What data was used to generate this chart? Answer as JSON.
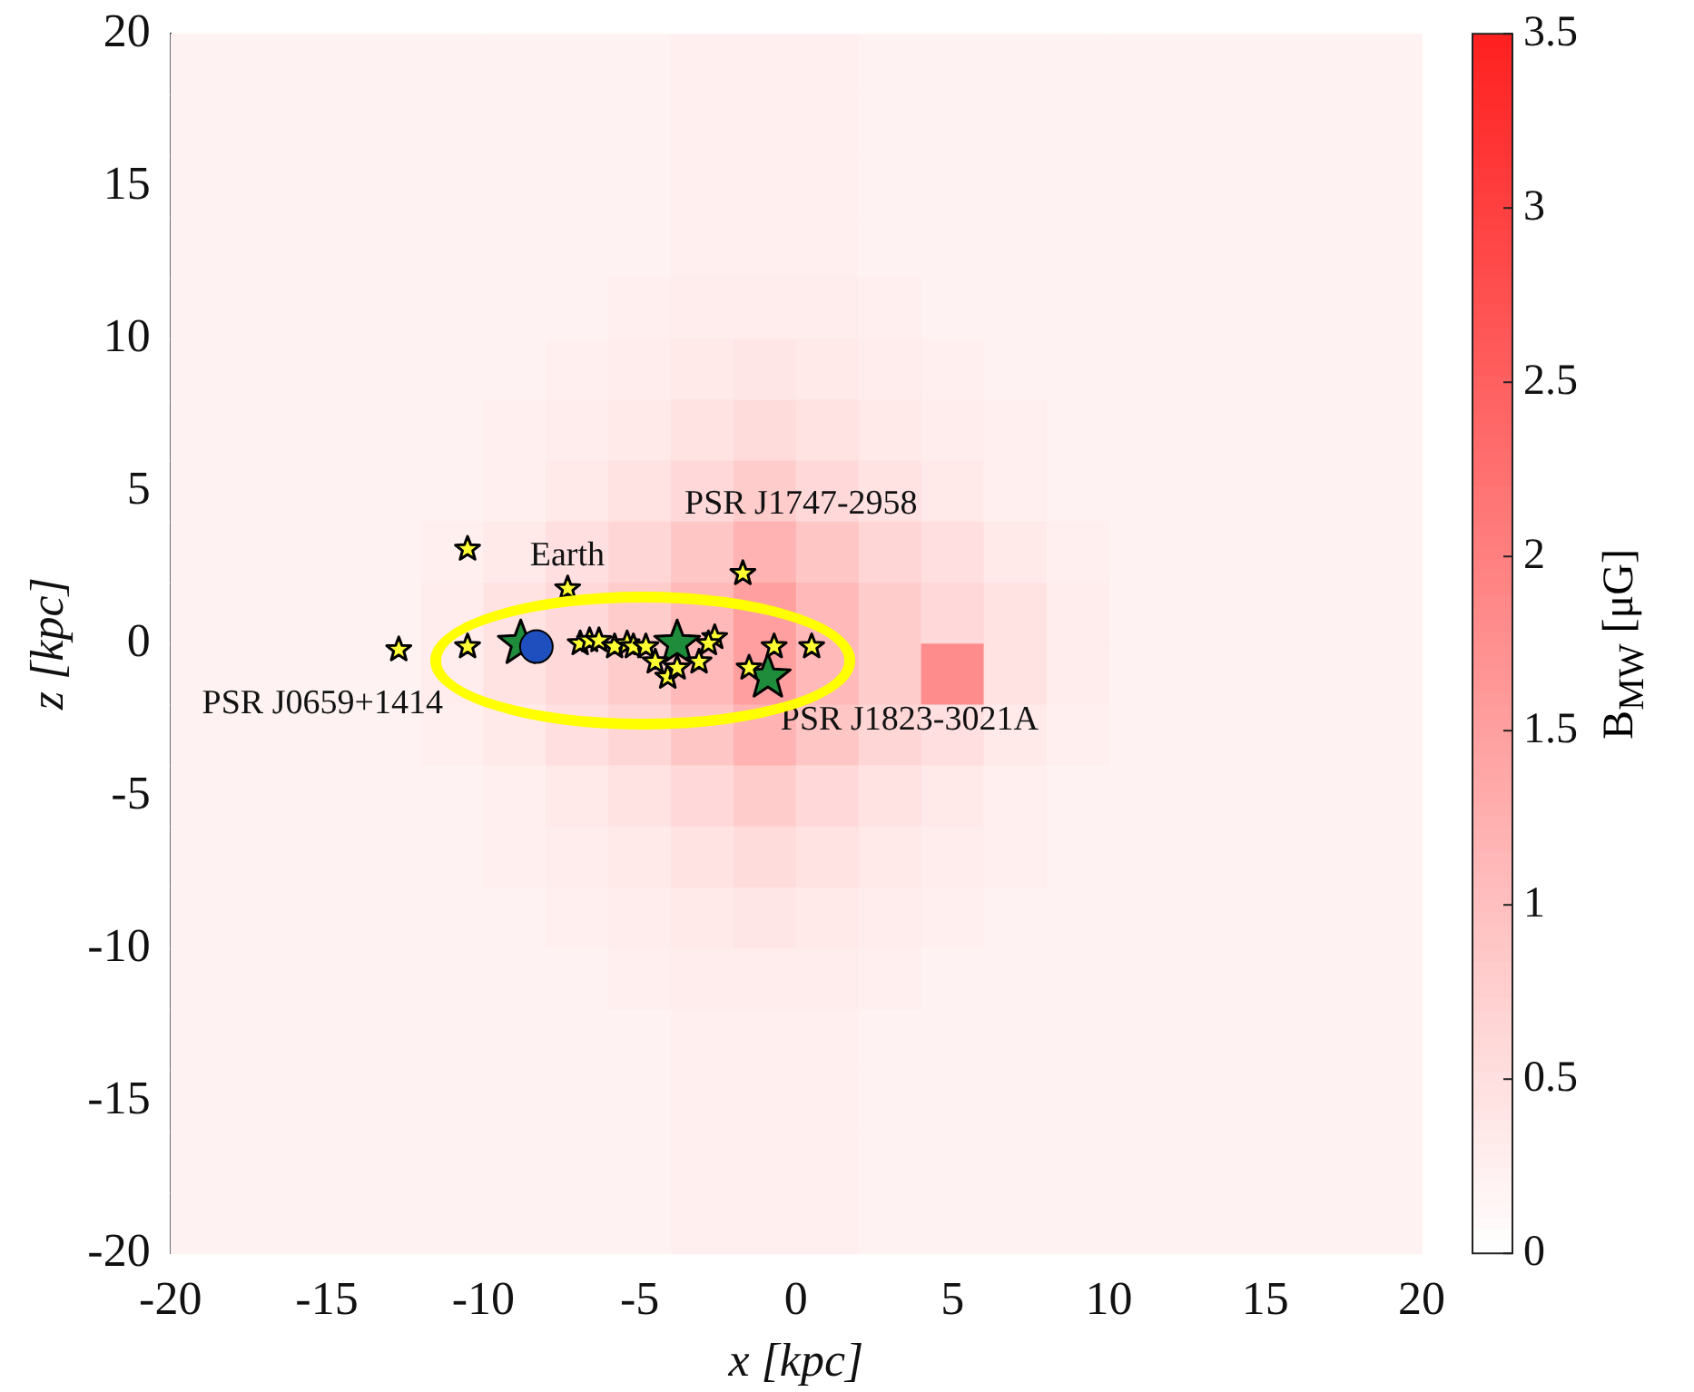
{
  "chart_data": {
    "type": "heatmap",
    "xlabel": "x [kpc]",
    "ylabel": "z [kpc]",
    "clabel": "B$_{MW}$ [μG]",
    "xlim": [
      -20,
      20
    ],
    "xticks": [
      -20,
      -15,
      -10,
      -5,
      0,
      5,
      10,
      15,
      20
    ],
    "ylim": [
      -20,
      20
    ],
    "yticks": [
      -20,
      -15,
      -10,
      -5,
      0,
      5,
      10,
      15,
      20
    ],
    "clim": [
      0,
      3.5
    ],
    "cticks": [
      0,
      0.5,
      1,
      1.5,
      2,
      2.5,
      3,
      3.5
    ],
    "grid": false,
    "legend": false,
    "cells": [
      [
        0.2,
        0.2,
        0.2,
        0.2,
        0.2,
        0.2,
        0.2,
        0.2,
        0.25,
        0.25,
        0.25,
        0.2,
        0.2,
        0.2,
        0.2,
        0.2,
        0.2,
        0.2,
        0.2,
        0.2
      ],
      [
        0.2,
        0.2,
        0.2,
        0.2,
        0.2,
        0.2,
        0.2,
        0.2,
        0.25,
        0.25,
        0.25,
        0.2,
        0.2,
        0.2,
        0.2,
        0.2,
        0.2,
        0.2,
        0.2,
        0.2
      ],
      [
        0.2,
        0.2,
        0.2,
        0.2,
        0.2,
        0.2,
        0.2,
        0.2,
        0.25,
        0.25,
        0.25,
        0.2,
        0.2,
        0.2,
        0.2,
        0.2,
        0.2,
        0.2,
        0.2,
        0.2
      ],
      [
        0.2,
        0.2,
        0.2,
        0.2,
        0.2,
        0.2,
        0.2,
        0.2,
        0.25,
        0.25,
        0.25,
        0.2,
        0.2,
        0.2,
        0.2,
        0.2,
        0.2,
        0.2,
        0.2,
        0.2
      ],
      [
        0.2,
        0.2,
        0.2,
        0.2,
        0.2,
        0.2,
        0.2,
        0.25,
        0.3,
        0.3,
        0.3,
        0.25,
        0.2,
        0.2,
        0.2,
        0.2,
        0.2,
        0.2,
        0.2,
        0.2
      ],
      [
        0.2,
        0.2,
        0.2,
        0.2,
        0.2,
        0.2,
        0.25,
        0.3,
        0.35,
        0.4,
        0.35,
        0.3,
        0.25,
        0.2,
        0.2,
        0.2,
        0.2,
        0.2,
        0.2,
        0.2
      ],
      [
        0.2,
        0.2,
        0.2,
        0.2,
        0.2,
        0.25,
        0.3,
        0.35,
        0.45,
        0.55,
        0.45,
        0.35,
        0.3,
        0.25,
        0.2,
        0.2,
        0.2,
        0.2,
        0.2,
        0.2
      ],
      [
        0.2,
        0.2,
        0.2,
        0.2,
        0.2,
        0.25,
        0.35,
        0.45,
        0.6,
        0.8,
        0.6,
        0.45,
        0.35,
        0.25,
        0.2,
        0.2,
        0.2,
        0.2,
        0.2,
        0.2
      ],
      [
        0.2,
        0.2,
        0.2,
        0.2,
        0.25,
        0.35,
        0.5,
        0.65,
        0.9,
        1.2,
        0.9,
        0.65,
        0.5,
        0.35,
        0.25,
        0.2,
        0.2,
        0.2,
        0.2,
        0.2
      ],
      [
        0.2,
        0.2,
        0.2,
        0.2,
        0.3,
        0.45,
        0.6,
        0.8,
        1.1,
        1.5,
        1.1,
        0.8,
        0.6,
        0.45,
        0.3,
        0.2,
        0.2,
        0.2,
        0.2,
        0.2
      ],
      [
        0.2,
        0.2,
        0.2,
        0.2,
        0.3,
        0.45,
        0.6,
        0.8,
        1.1,
        1.5,
        1.1,
        0.8,
        1.8,
        0.45,
        0.3,
        0.2,
        0.2,
        0.2,
        0.2,
        0.2
      ],
      [
        0.2,
        0.2,
        0.2,
        0.2,
        0.25,
        0.35,
        0.5,
        0.65,
        0.9,
        1.2,
        0.9,
        0.65,
        0.5,
        0.35,
        0.25,
        0.2,
        0.2,
        0.2,
        0.2,
        0.2
      ],
      [
        0.2,
        0.2,
        0.2,
        0.2,
        0.2,
        0.25,
        0.35,
        0.45,
        0.6,
        0.8,
        0.6,
        0.45,
        0.35,
        0.25,
        0.2,
        0.2,
        0.2,
        0.2,
        0.2,
        0.2
      ],
      [
        0.2,
        0.2,
        0.2,
        0.2,
        0.2,
        0.25,
        0.3,
        0.35,
        0.45,
        0.55,
        0.45,
        0.35,
        0.3,
        0.25,
        0.2,
        0.2,
        0.2,
        0.2,
        0.2,
        0.2
      ],
      [
        0.2,
        0.2,
        0.2,
        0.2,
        0.2,
        0.2,
        0.25,
        0.3,
        0.35,
        0.4,
        0.35,
        0.3,
        0.25,
        0.2,
        0.2,
        0.2,
        0.2,
        0.2,
        0.2,
        0.2
      ],
      [
        0.2,
        0.2,
        0.2,
        0.2,
        0.2,
        0.2,
        0.2,
        0.25,
        0.3,
        0.3,
        0.3,
        0.25,
        0.2,
        0.2,
        0.2,
        0.2,
        0.2,
        0.2,
        0.2,
        0.2
      ],
      [
        0.2,
        0.2,
        0.2,
        0.2,
        0.2,
        0.2,
        0.2,
        0.2,
        0.25,
        0.25,
        0.25,
        0.2,
        0.2,
        0.2,
        0.2,
        0.2,
        0.2,
        0.2,
        0.2,
        0.2
      ],
      [
        0.2,
        0.2,
        0.2,
        0.2,
        0.2,
        0.2,
        0.2,
        0.2,
        0.25,
        0.25,
        0.25,
        0.2,
        0.2,
        0.2,
        0.2,
        0.2,
        0.2,
        0.2,
        0.2,
        0.2
      ],
      [
        0.2,
        0.2,
        0.2,
        0.2,
        0.2,
        0.2,
        0.2,
        0.2,
        0.25,
        0.25,
        0.25,
        0.2,
        0.2,
        0.2,
        0.2,
        0.2,
        0.2,
        0.2,
        0.2,
        0.2
      ],
      [
        0.2,
        0.2,
        0.2,
        0.2,
        0.2,
        0.2,
        0.2,
        0.2,
        0.25,
        0.25,
        0.25,
        0.2,
        0.2,
        0.2,
        0.2,
        0.2,
        0.2,
        0.2,
        0.2,
        0.2
      ]
    ],
    "series": [
      {
        "type": "scatter",
        "marker": "star",
        "color": "#ffff33",
        "x": [
          -10.5,
          -7.3,
          -1.7,
          -12.7,
          -10.5,
          -6.9,
          -6.6,
          -6.3,
          -5.8,
          -5.4,
          -5.2,
          -4.8,
          -4.5,
          -4.1,
          -3.8,
          -3.1,
          -2.6,
          -2.8,
          -1.5,
          -0.7,
          0.5
        ],
        "values": [
          3.1,
          1.8,
          2.3,
          -0.2,
          -0.1,
          0,
          0.1,
          0.1,
          -0.1,
          0,
          -0.1,
          -0.1,
          -0.6,
          -1.1,
          -0.8,
          -0.6,
          0.2,
          0,
          -0.8,
          -0.1,
          -0.1
        ]
      },
      {
        "type": "scatter",
        "marker": "circle",
        "color": "#1f4fbf",
        "x": [
          -8.3
        ],
        "values": [
          -0.1
        ]
      },
      {
        "type": "scatter",
        "marker": "star",
        "color": "#1e8c3a",
        "x": [
          -8.8,
          -3.8,
          -0.9
        ],
        "values": [
          0,
          0,
          -1.1
        ]
      }
    ],
    "annotations": [
      {
        "text": "Earth",
        "x": -8.3,
        "y": -0.1
      },
      {
        "text": "PSR J1747-2958",
        "x": -1.7,
        "y": 2.3
      },
      {
        "text": "PSR J0659+1414",
        "x": -12.7,
        "y": -0.2
      },
      {
        "text": "PSR J1823-3021A",
        "x": -0.9,
        "y": -1.1
      }
    ]
  }
}
